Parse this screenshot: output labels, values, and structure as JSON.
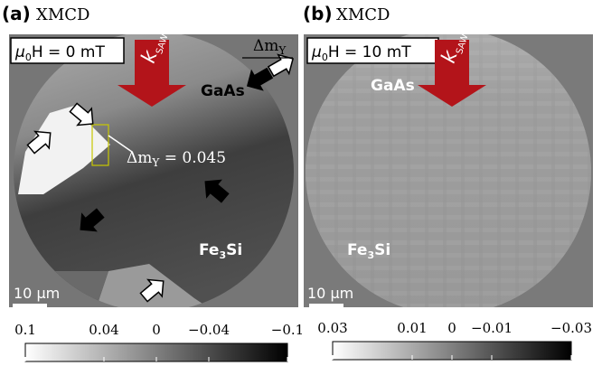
{
  "panels": [
    {
      "label": "(a)",
      "title": "XMCD",
      "field": {
        "symbol": "μ",
        "sub": "0",
        "rest": "H = 0 mT"
      },
      "k": {
        "main": "k",
        "sub": "SAW"
      },
      "gaas": "GaAs",
      "fe3si": {
        "a": "Fe",
        "b": "3",
        "c": "Si"
      },
      "scale_bar": "10 μm",
      "colorbar": {
        "lim": [
          0.1,
          -0.1
        ],
        "ticks": [
          0.1,
          0.04,
          0,
          {
            "value": -0.04,
            "label": "−0.04"
          },
          {
            "value": -0.1,
            "label": "−0.1"
          }
        ]
      }
    },
    {
      "label": "(b)",
      "title": "XMCD",
      "field": {
        "symbol": "μ",
        "sub": "0",
        "rest": "H = 10 mT"
      },
      "k": {
        "main": "k",
        "sub": "SAW"
      },
      "gaas": "GaAs",
      "fe3si": {
        "a": "Fe",
        "b": "3",
        "c": "Si"
      },
      "scale_bar": "10 μm",
      "colorbar": {
        "lim": [
          0.03,
          -0.03
        ],
        "ticks": [
          0.03,
          0.01,
          0,
          {
            "value": -0.01,
            "label": "−0.01"
          },
          {
            "value": -0.03,
            "label": "−0.03"
          }
        ]
      }
    }
  ],
  "annotations": {
    "dm_axis": {
      "main": "Δm",
      "sub": "Y"
    },
    "dm_value": {
      "main": "Δm",
      "sub": "Y",
      "rest": " = 0.045"
    }
  }
}
